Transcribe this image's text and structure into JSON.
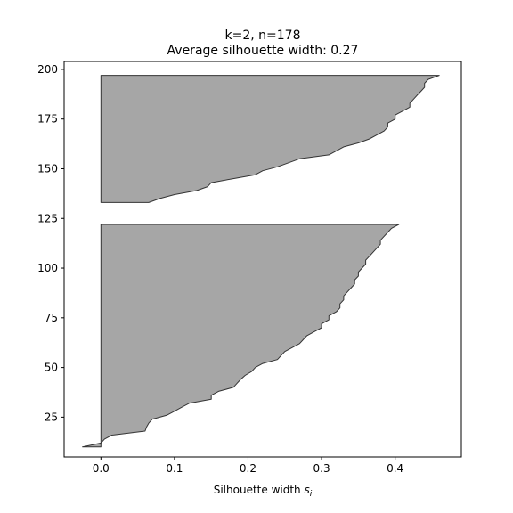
{
  "chart_data": {
    "type": "area",
    "title_line1": "k=2, n=178",
    "title_line2": "Average silhouette width: 0.27",
    "xlabel": "Silhouette width",
    "xlabel_sub": "i",
    "xlabel_var": "s",
    "ylabel": "",
    "xlim": [
      -0.05,
      0.49
    ],
    "ylim": [
      5,
      204
    ],
    "xticks": [
      0.0,
      0.1,
      0.2,
      0.3,
      0.4
    ],
    "xtick_labels": [
      "0.0",
      "0.1",
      "0.2",
      "0.3",
      "0.4"
    ],
    "yticks": [
      25,
      50,
      75,
      100,
      125,
      150,
      175,
      200
    ],
    "ytick_labels": [
      "25",
      "50",
      "75",
      "100",
      "125",
      "150",
      "175",
      "200"
    ],
    "grid": false,
    "colors": {
      "fill": "#a6a6a6",
      "edge": "#333333"
    },
    "clusters": [
      {
        "name": "",
        "y": [
          10,
          12,
          14,
          16,
          18,
          20,
          22,
          24,
          26,
          28,
          30,
          32,
          34,
          36,
          38,
          40,
          42,
          44,
          46,
          48,
          50,
          52,
          54,
          56,
          58,
          60,
          62,
          64,
          66,
          68,
          70,
          72,
          74,
          76,
          78,
          80,
          82,
          84,
          86,
          88,
          90,
          92,
          94,
          96,
          98,
          100,
          102,
          104,
          106,
          108,
          110,
          112,
          114,
          116,
          118,
          120,
          122
        ],
        "s": [
          -0.025,
          0.0,
          0.005,
          0.015,
          0.06,
          0.062,
          0.065,
          0.07,
          0.09,
          0.1,
          0.11,
          0.12,
          0.15,
          0.15,
          0.16,
          0.18,
          0.185,
          0.19,
          0.196,
          0.205,
          0.21,
          0.22,
          0.24,
          0.245,
          0.25,
          0.26,
          0.27,
          0.275,
          0.28,
          0.29,
          0.3,
          0.3,
          0.31,
          0.31,
          0.32,
          0.325,
          0.325,
          0.33,
          0.33,
          0.335,
          0.34,
          0.345,
          0.345,
          0.35,
          0.35,
          0.355,
          0.36,
          0.36,
          0.365,
          0.37,
          0.375,
          0.38,
          0.38,
          0.385,
          0.39,
          0.395,
          0.405
        ]
      },
      {
        "name": "",
        "y": [
          133,
          135,
          137,
          139,
          141,
          143,
          145,
          147,
          149,
          151,
          153,
          155,
          157,
          159,
          161,
          163,
          165,
          167,
          169,
          171,
          173,
          175,
          177,
          179,
          181,
          183,
          185,
          187,
          189,
          191,
          193,
          195,
          197
        ],
        "s": [
          0.065,
          0.08,
          0.1,
          0.13,
          0.145,
          0.15,
          0.18,
          0.21,
          0.22,
          0.24,
          0.255,
          0.27,
          0.31,
          0.32,
          0.33,
          0.35,
          0.365,
          0.375,
          0.385,
          0.39,
          0.39,
          0.4,
          0.4,
          0.41,
          0.42,
          0.42,
          0.425,
          0.43,
          0.435,
          0.44,
          0.44,
          0.445,
          0.46
        ]
      }
    ]
  }
}
